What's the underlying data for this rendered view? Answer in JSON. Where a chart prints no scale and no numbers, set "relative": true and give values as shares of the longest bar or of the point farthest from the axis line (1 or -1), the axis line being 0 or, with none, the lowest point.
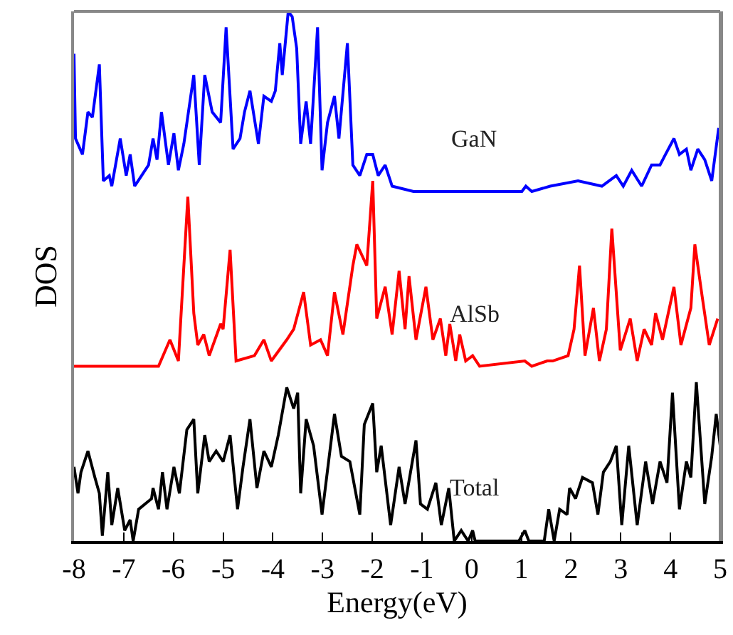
{
  "chart_data": {
    "type": "line",
    "relative": true,
    "xlabel": "Energy(eV)",
    "ylabel": "DOS",
    "xlim": [
      -8,
      5
    ],
    "xticks": [
      -8,
      -7,
      -6,
      -5,
      -4,
      -3,
      -2,
      -1,
      0,
      1,
      2,
      3,
      4,
      5
    ],
    "legend": false,
    "marker": "none",
    "line_style": "solid",
    "series": [
      {
        "name": "GaN",
        "color": "#0000ff",
        "x": [
          -8.0,
          -7.97,
          -7.83,
          -7.72,
          -7.63,
          -7.49,
          -7.41,
          -7.29,
          -7.24,
          -7.07,
          -6.95,
          -6.87,
          -6.78,
          -6.64,
          -6.5,
          -6.41,
          -6.33,
          -6.24,
          -6.1,
          -5.99,
          -5.9,
          -5.79,
          -5.59,
          -5.48,
          -5.37,
          -5.22,
          -5.05,
          -4.94,
          -4.8,
          -4.66,
          -4.57,
          -4.46,
          -4.29,
          -4.18,
          -4.03,
          -3.95,
          -3.86,
          -3.81,
          -3.69,
          -3.61,
          -3.52,
          -3.44,
          -3.33,
          -3.24,
          -3.1,
          -3.01,
          -2.9,
          -2.76,
          -2.67,
          -2.5,
          -2.39,
          -2.25,
          -2.11,
          -1.99,
          -1.88,
          -1.74,
          -1.6,
          -1.17,
          -0.21,
          1.01,
          1.09,
          1.21,
          1.58,
          2.14,
          2.62,
          2.91,
          3.05,
          3.22,
          3.42,
          3.62,
          3.79,
          3.9,
          4.07,
          4.18,
          4.32,
          4.41,
          4.55,
          4.69,
          4.83,
          4.97
        ],
        "values": [
          0.92,
          0.76,
          0.73,
          0.81,
          0.8,
          0.9,
          0.68,
          0.69,
          0.67,
          0.76,
          0.69,
          0.73,
          0.67,
          0.69,
          0.71,
          0.76,
          0.72,
          0.81,
          0.71,
          0.77,
          0.7,
          0.75,
          0.88,
          0.71,
          0.88,
          0.81,
          0.79,
          0.97,
          0.74,
          0.76,
          0.81,
          0.85,
          0.75,
          0.84,
          0.83,
          0.85,
          0.94,
          0.88,
          1.0,
          0.99,
          0.93,
          0.75,
          0.83,
          0.75,
          0.97,
          0.7,
          0.79,
          0.84,
          0.76,
          0.94,
          0.71,
          0.69,
          0.73,
          0.73,
          0.69,
          0.71,
          0.67,
          0.66,
          0.66,
          0.66,
          0.67,
          0.66,
          0.67,
          0.68,
          0.67,
          0.69,
          0.67,
          0.7,
          0.67,
          0.71,
          0.71,
          0.73,
          0.76,
          0.73,
          0.74,
          0.7,
          0.74,
          0.72,
          0.68,
          0.78
        ]
      },
      {
        "name": "AlSb",
        "color": "#ff0000",
        "x": [
          -8.0,
          -6.3,
          -6.07,
          -5.9,
          -5.71,
          -5.59,
          -5.51,
          -5.39,
          -5.28,
          -5.05,
          -5.0,
          -4.86,
          -4.74,
          -4.37,
          -4.18,
          -4.03,
          -3.72,
          -3.58,
          -3.38,
          -3.24,
          -3.04,
          -2.9,
          -2.76,
          -2.59,
          -2.39,
          -2.31,
          -2.11,
          -1.99,
          -1.91,
          -1.74,
          -1.6,
          -1.46,
          -1.34,
          -1.26,
          -1.12,
          -0.92,
          -0.78,
          -0.63,
          -0.52,
          -0.44,
          -0.32,
          -0.24,
          -0.12,
          0.02,
          0.16,
          1.07,
          1.21,
          1.52,
          1.63,
          1.94,
          2.06,
          2.17,
          2.28,
          2.45,
          2.57,
          2.71,
          2.82,
          2.99,
          3.19,
          3.33,
          3.47,
          3.62,
          3.7,
          3.84,
          4.07,
          4.21,
          4.41,
          4.49,
          4.64,
          4.78,
          4.95
        ],
        "values": [
          0.33,
          0.33,
          0.38,
          0.34,
          0.65,
          0.43,
          0.37,
          0.39,
          0.35,
          0.41,
          0.4,
          0.55,
          0.34,
          0.35,
          0.38,
          0.34,
          0.38,
          0.4,
          0.47,
          0.37,
          0.38,
          0.35,
          0.47,
          0.39,
          0.52,
          0.56,
          0.52,
          0.68,
          0.42,
          0.48,
          0.39,
          0.51,
          0.4,
          0.5,
          0.38,
          0.48,
          0.38,
          0.42,
          0.35,
          0.41,
          0.34,
          0.39,
          0.34,
          0.35,
          0.33,
          0.34,
          0.33,
          0.34,
          0.34,
          0.35,
          0.4,
          0.52,
          0.35,
          0.44,
          0.34,
          0.4,
          0.59,
          0.36,
          0.42,
          0.34,
          0.4,
          0.37,
          0.43,
          0.38,
          0.48,
          0.37,
          0.44,
          0.56,
          0.46,
          0.37,
          0.42
        ]
      },
      {
        "name": "Total",
        "color": "#000000",
        "x": [
          -8.0,
          -7.92,
          -7.86,
          -7.72,
          -7.58,
          -7.49,
          -7.43,
          -7.32,
          -7.24,
          -7.12,
          -6.98,
          -6.87,
          -6.81,
          -6.7,
          -6.44,
          -6.41,
          -6.3,
          -6.22,
          -6.13,
          -5.99,
          -5.88,
          -5.73,
          -5.59,
          -5.51,
          -5.37,
          -5.28,
          -5.14,
          -5.0,
          -4.86,
          -4.71,
          -4.6,
          -4.46,
          -4.32,
          -4.18,
          -4.03,
          -3.89,
          -3.72,
          -3.58,
          -3.5,
          -3.44,
          -3.33,
          -3.18,
          -3.01,
          -2.76,
          -2.62,
          -2.45,
          -2.25,
          -2.16,
          -1.99,
          -1.91,
          -1.82,
          -1.63,
          -1.46,
          -1.34,
          -1.12,
          -1.03,
          -0.89,
          -0.72,
          -0.61,
          -0.46,
          -0.35,
          -0.21,
          -0.07,
          0.02,
          0.07,
          0.95,
          1.07,
          1.15,
          1.46,
          1.55,
          1.66,
          1.77,
          1.92,
          1.97,
          2.09,
          2.23,
          2.43,
          2.54,
          2.65,
          2.79,
          2.91,
          3.02,
          3.16,
          3.33,
          3.5,
          3.64,
          3.79,
          3.93,
          4.04,
          4.18,
          4.32,
          4.41,
          4.52,
          4.69,
          4.83,
          4.92,
          5.0
        ],
        "values": [
          0.14,
          0.09,
          0.13,
          0.17,
          0.12,
          0.09,
          0.01,
          0.13,
          0.03,
          0.1,
          0.02,
          0.04,
          0.0,
          0.06,
          0.08,
          0.1,
          0.06,
          0.13,
          0.06,
          0.14,
          0.09,
          0.21,
          0.23,
          0.09,
          0.2,
          0.15,
          0.17,
          0.15,
          0.2,
          0.06,
          0.14,
          0.23,
          0.1,
          0.17,
          0.14,
          0.2,
          0.29,
          0.25,
          0.28,
          0.09,
          0.23,
          0.18,
          0.05,
          0.24,
          0.16,
          0.15,
          0.05,
          0.22,
          0.26,
          0.13,
          0.18,
          0.03,
          0.14,
          0.07,
          0.19,
          0.07,
          0.06,
          0.11,
          0.03,
          0.1,
          0.0,
          0.02,
          0.0,
          0.02,
          0.0,
          0.0,
          0.02,
          0.0,
          0.0,
          0.06,
          0.0,
          0.06,
          0.05,
          0.1,
          0.08,
          0.12,
          0.11,
          0.05,
          0.13,
          0.15,
          0.18,
          0.03,
          0.18,
          0.03,
          0.15,
          0.07,
          0.15,
          0.11,
          0.28,
          0.06,
          0.15,
          0.12,
          0.3,
          0.07,
          0.16,
          0.24,
          0.18
        ]
      }
    ]
  }
}
